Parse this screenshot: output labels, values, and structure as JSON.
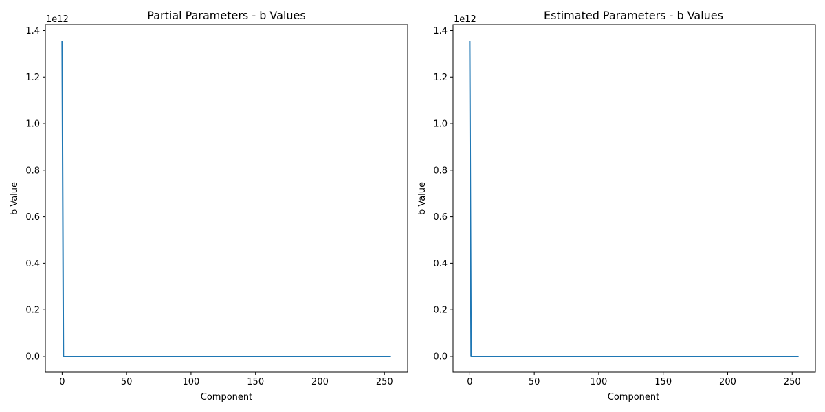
{
  "chart_data": [
    {
      "type": "line",
      "title": "Partial Parameters - b Values",
      "xlabel": "Component",
      "ylabel": "b Value",
      "y_offset_label": "1e12",
      "xlim": [
        -13,
        268
      ],
      "ylim": [
        -0.068,
        1.425
      ],
      "y_scale_factor": 1000000000000,
      "x_ticks": [
        0,
        50,
        100,
        150,
        200,
        250
      ],
      "x_tick_labels": [
        "0",
        "50",
        "100",
        "150",
        "200",
        "250"
      ],
      "y_ticks": [
        0,
        0.2,
        0.4,
        0.6,
        0.8,
        1.0,
        1.2,
        1.4
      ],
      "y_tick_labels": [
        "0.0",
        "0.2",
        "0.4",
        "0.6",
        "0.8",
        "1.0",
        "1.2",
        "1.4"
      ],
      "grid": false,
      "series": [
        {
          "color": "#1f77b4",
          "x": [
            0,
            1,
            255
          ],
          "y": [
            1.355,
            0.0,
            0.0
          ]
        }
      ]
    },
    {
      "type": "line",
      "title": "Estimated Parameters - b Values",
      "xlabel": "Component",
      "ylabel": "b Value",
      "y_offset_label": "1e12",
      "xlim": [
        -13,
        268
      ],
      "ylim": [
        -0.068,
        1.425
      ],
      "y_scale_factor": 1000000000000,
      "x_ticks": [
        0,
        50,
        100,
        150,
        200,
        250
      ],
      "x_tick_labels": [
        "0",
        "50",
        "100",
        "150",
        "200",
        "250"
      ],
      "y_ticks": [
        0,
        0.2,
        0.4,
        0.6,
        0.8,
        1.0,
        1.2,
        1.4
      ],
      "y_tick_labels": [
        "0.0",
        "0.2",
        "0.4",
        "0.6",
        "0.8",
        "1.0",
        "1.2",
        "1.4"
      ],
      "grid": false,
      "series": [
        {
          "color": "#1f77b4",
          "x": [
            0,
            1,
            255
          ],
          "y": [
            1.355,
            0.0,
            0.0
          ]
        }
      ]
    }
  ]
}
